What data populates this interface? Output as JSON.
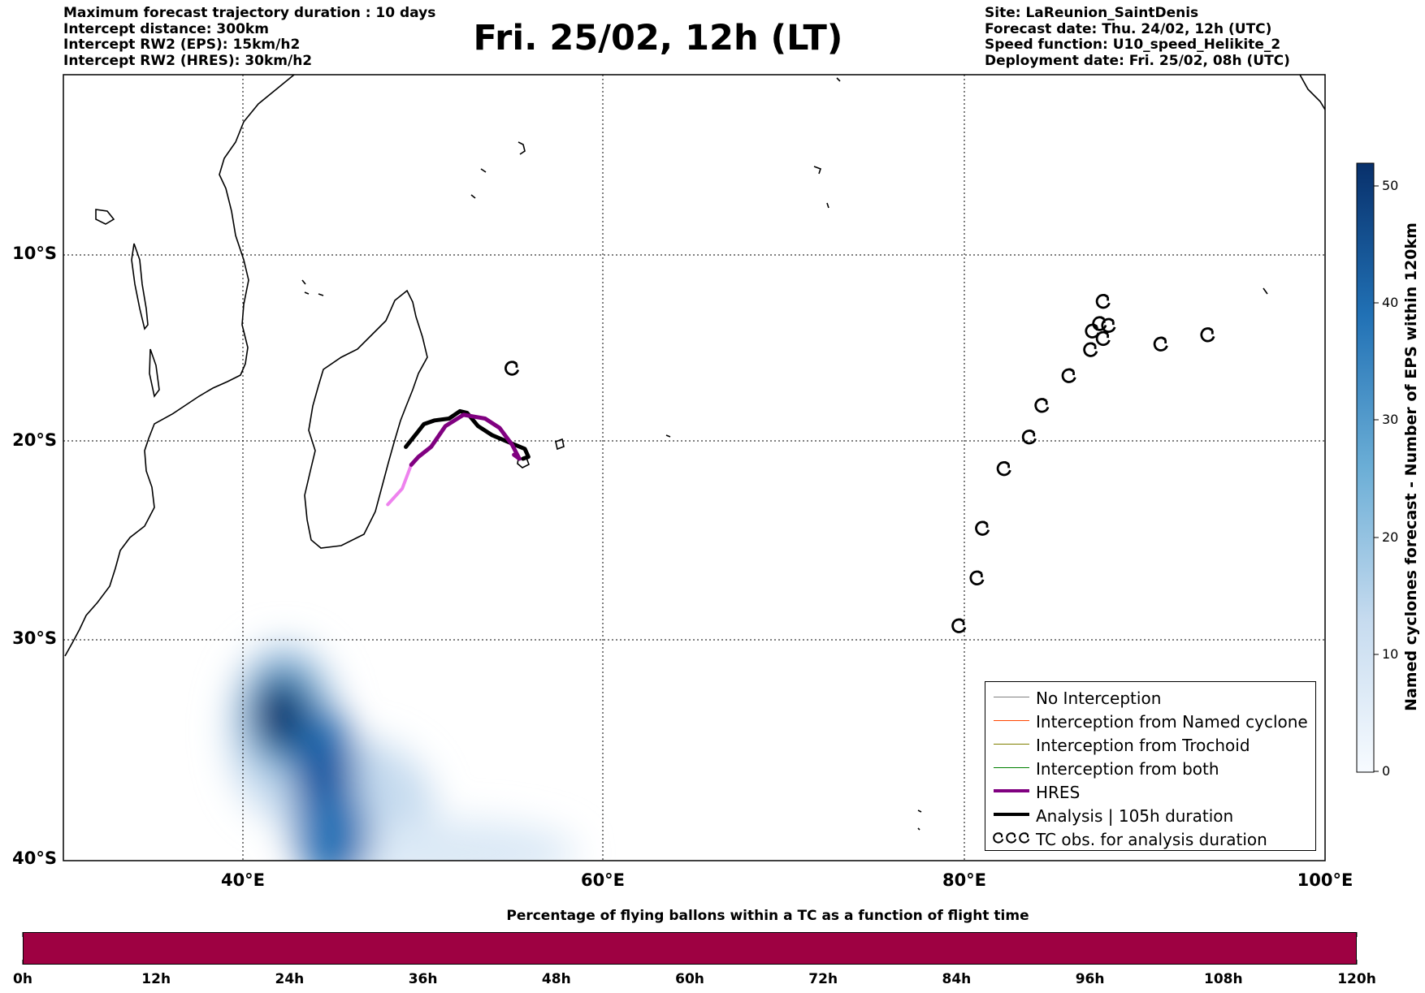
{
  "header": {
    "left_lines": [
      "Maximum forecast trajectory duration : 10 days",
      "Intercept distance: 300km",
      "Intercept RW2 (EPS):  15km/h2",
      "Intercept RW2 (HRES): 30km/h2"
    ],
    "title": "Fri. 25/02, 12h (LT)",
    "right_lines": [
      "Site: LaReunion_SaintDenis",
      "Forecast date: Thu. 24/02, 12h (UTC)",
      "Speed function: U10_speed_Helikite_2",
      "Deployment date: Fri. 25/02, 08h (UTC)"
    ]
  },
  "map": {
    "lon_range": [
      30,
      100
    ],
    "lat_range": [
      -40,
      0
    ],
    "lat_ticks": [
      {
        "value": -10,
        "label": "10°S"
      },
      {
        "value": -20,
        "label": "20°S"
      },
      {
        "value": -30,
        "label": "30°S"
      },
      {
        "value": -40,
        "label": "40°S"
      }
    ],
    "lon_ticks": [
      {
        "value": 40,
        "label": "40°E"
      },
      {
        "value": 60,
        "label": "60°E"
      },
      {
        "value": 80,
        "label": "80°E"
      },
      {
        "value": 100,
        "label": "100°E"
      }
    ],
    "gridlines": "dotted",
    "colors": {
      "hres": "#800080",
      "hres_early": "#ee82ee",
      "analysis": "#000000",
      "no_interception": "#808080",
      "named_cyclone": "#ff4500",
      "trochoid": "#808000",
      "both": "#008000"
    },
    "hres_track": [
      [
        48.0,
        -23.2
      ],
      [
        48.8,
        -22.4
      ],
      [
        49.3,
        -21.2
      ],
      [
        49.7,
        -20.8
      ],
      [
        50.4,
        -20.3
      ],
      [
        51.2,
        -19.2
      ],
      [
        52.2,
        -18.6
      ],
      [
        52.8,
        -18.7
      ],
      [
        53.4,
        -18.8
      ],
      [
        54.2,
        -19.3
      ],
      [
        54.9,
        -20.2
      ],
      [
        55.3,
        -20.9
      ],
      [
        55.0,
        -20.7
      ]
    ],
    "analysis_track": [
      [
        49.0,
        -20.3
      ],
      [
        49.6,
        -19.6
      ],
      [
        50.0,
        -19.1
      ],
      [
        50.6,
        -18.9
      ],
      [
        51.4,
        -18.8
      ],
      [
        52.0,
        -18.4
      ],
      [
        52.4,
        -18.5
      ],
      [
        53.0,
        -19.2
      ],
      [
        53.8,
        -19.7
      ],
      [
        54.8,
        -20.1
      ],
      [
        55.6,
        -20.4
      ],
      [
        55.8,
        -20.8
      ],
      [
        55.5,
        -20.9
      ]
    ],
    "tc_obs": [
      [
        79.7,
        -29.3
      ],
      [
        80.7,
        -26.9
      ],
      [
        81.0,
        -24.4
      ],
      [
        82.2,
        -21.4
      ],
      [
        83.6,
        -19.8
      ],
      [
        84.3,
        -18.1
      ],
      [
        85.8,
        -16.5
      ],
      [
        87.0,
        -15.1
      ],
      [
        87.1,
        -14.1
      ],
      [
        87.5,
        -13.7
      ],
      [
        87.7,
        -14.5
      ],
      [
        87.7,
        -12.5
      ],
      [
        88.0,
        -13.8
      ],
      [
        90.9,
        -14.8
      ],
      [
        93.5,
        -14.3
      ],
      [
        54.9,
        -16.1
      ]
    ],
    "eps_density_blobs": [
      {
        "lon": 41.8,
        "lat": -33.3,
        "intensity": 50
      },
      {
        "lon": 44.0,
        "lat": -35.5,
        "intensity": 44
      },
      {
        "lon": 45.0,
        "lat": -38.0,
        "intensity": 40
      },
      {
        "lon": 48.0,
        "lat": -39.3,
        "intensity": 18
      }
    ]
  },
  "colorbar": {
    "label": "Named cyclones forecast - Number of EPS within 120km",
    "range": [
      0,
      52
    ],
    "ticks": [
      "0",
      "10",
      "20",
      "30",
      "40",
      "50"
    ],
    "colors": [
      "#f7fbff",
      "#c6dbef",
      "#6baed6",
      "#2171b5",
      "#08306b"
    ]
  },
  "legend": {
    "items": [
      {
        "label": "No Interception",
        "style": "thin",
        "color": "#808080"
      },
      {
        "label": "Interception from Named cyclone",
        "style": "thin",
        "color": "#ff4500"
      },
      {
        "label": "Interception from Trochoid",
        "style": "thin",
        "color": "#808000"
      },
      {
        "label": "Interception from both",
        "style": "thin",
        "color": "#008000"
      },
      {
        "label": "HRES",
        "style": "thick",
        "color": "#800080"
      },
      {
        "label": "Analysis | 105h duration",
        "style": "thick",
        "color": "#000000"
      },
      {
        "label": "TC obs. for analysis duration",
        "style": "tc-icon",
        "color": "#000000"
      }
    ]
  },
  "time_bar": {
    "title": "Percentage of flying ballons within a TC as a function of flight time",
    "color": "#9e0142",
    "ticks": [
      "0h",
      "12h",
      "24h",
      "36h",
      "48h",
      "60h",
      "72h",
      "84h",
      "96h",
      "108h",
      "120h"
    ]
  }
}
